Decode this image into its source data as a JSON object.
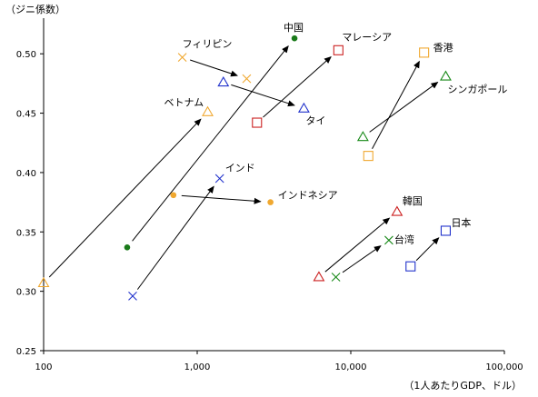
{
  "chart_data": {
    "type": "scatter",
    "title": "",
    "ylabel": "（ジニ係数）",
    "xlabel": "（1人あたりGDP、ドル）",
    "xscale": "log",
    "xlim": [
      100,
      100000
    ],
    "ylim": [
      0.25,
      0.53
    ],
    "xticks": [
      100,
      1000,
      10000,
      100000
    ],
    "xtick_labels": [
      "100",
      "1,000",
      "10,000",
      "100,000"
    ],
    "yticks": [
      0.25,
      0.3,
      0.35,
      0.4,
      0.45,
      0.5
    ],
    "ytick_labels": [
      "0.25",
      "0.30",
      "0.35",
      "0.40",
      "0.45",
      "0.50"
    ],
    "grid": false,
    "legend": "none",
    "series": [
      {
        "name": "中国",
        "marker": "circle",
        "color": "#1a7a1a",
        "points": [
          {
            "x": 350,
            "y": 0.337
          },
          {
            "x": 4300,
            "y": 0.513
          }
        ]
      },
      {
        "name": "フィリピン",
        "marker": "x",
        "color": "#f0a830",
        "points": [
          {
            "x": 800,
            "y": 0.497
          },
          {
            "x": 2100,
            "y": 0.479
          }
        ]
      },
      {
        "name": "マレーシア",
        "marker": "square",
        "color": "#cc2222",
        "points": [
          {
            "x": 2450,
            "y": 0.442
          },
          {
            "x": 8300,
            "y": 0.503
          }
        ]
      },
      {
        "name": "香港",
        "marker": "square",
        "color": "#f0a830",
        "points": [
          {
            "x": 13000,
            "y": 0.414
          },
          {
            "x": 30000,
            "y": 0.501
          }
        ]
      },
      {
        "name": "シンガポール",
        "marker": "triangle",
        "color": "#1a8a1a",
        "points": [
          {
            "x": 12000,
            "y": 0.43
          },
          {
            "x": 41500,
            "y": 0.481
          }
        ]
      },
      {
        "name": "タイ",
        "marker": "triangle",
        "color": "#2233cc",
        "points": [
          {
            "x": 1480,
            "y": 0.476
          },
          {
            "x": 4950,
            "y": 0.454
          }
        ]
      },
      {
        "name": "ベトナム",
        "marker": "triangle",
        "color": "#f0a830",
        "points": [
          {
            "x": 100,
            "y": 0.307
          },
          {
            "x": 1170,
            "y": 0.451
          }
        ]
      },
      {
        "name": "インド",
        "marker": "x",
        "color": "#2233cc",
        "points": [
          {
            "x": 380,
            "y": 0.296
          },
          {
            "x": 1400,
            "y": 0.395
          }
        ]
      },
      {
        "name": "インドネシア",
        "marker": "circle",
        "color": "#f0a830",
        "points": [
          {
            "x": 700,
            "y": 0.381
          },
          {
            "x": 3000,
            "y": 0.375
          }
        ]
      },
      {
        "name": "韓国",
        "marker": "triangle",
        "color": "#cc2222",
        "points": [
          {
            "x": 6200,
            "y": 0.312
          },
          {
            "x": 20000,
            "y": 0.367
          }
        ]
      },
      {
        "name": "台湾",
        "marker": "x",
        "color": "#1a8a1a",
        "points": [
          {
            "x": 8000,
            "y": 0.312
          },
          {
            "x": 17700,
            "y": 0.343
          }
        ]
      },
      {
        "name": "日本",
        "marker": "square",
        "color": "#2233cc",
        "points": [
          {
            "x": 24500,
            "y": 0.321
          },
          {
            "x": 41500,
            "y": 0.351
          }
        ]
      }
    ]
  }
}
